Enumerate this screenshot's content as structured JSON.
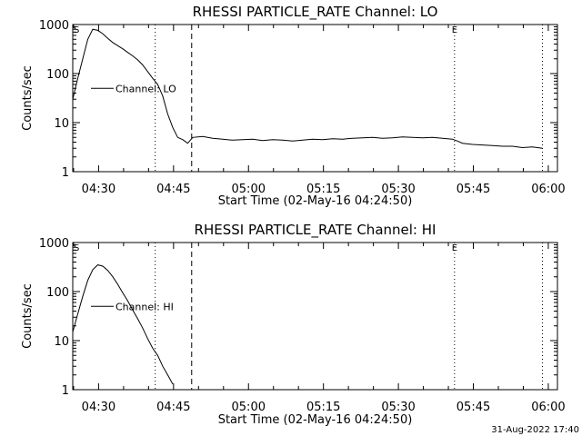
{
  "footer_timestamp": "31-Aug-2022 17:40",
  "chart_data": [
    {
      "type": "line",
      "title": "RHESSI PARTICLE_RATE Channel: LO",
      "xlabel": "Start Time (02-May-16 04:24:50)",
      "ylabel": "Counts/sec",
      "y_scale": "log",
      "ylim": [
        1,
        1000
      ],
      "xlim_minutes": [
        0,
        97
      ],
      "x_tick_labels": [
        "04:30",
        "04:45",
        "05:00",
        "05:15",
        "05:30",
        "05:45",
        "06:00"
      ],
      "x_tick_minutes": [
        5.17,
        20.17,
        35.17,
        50.17,
        65.17,
        80.17,
        95.17
      ],
      "y_tick_labels": [
        "1",
        "10",
        "100",
        "1000"
      ],
      "y_tick_values": [
        1,
        10,
        100,
        1000
      ],
      "legend": "Channel: LO",
      "region_markers": [
        "S",
        "E"
      ],
      "vlines": [
        {
          "minute": 16.5,
          "style": "dotted"
        },
        {
          "minute": 23.8,
          "style": "dashed"
        },
        {
          "minute": 76.4,
          "style": "dotted"
        },
        {
          "minute": 94.0,
          "style": "dotted"
        }
      ],
      "series": [
        {
          "x": [
            0,
            1,
            2,
            3,
            4,
            5,
            6,
            7,
            8,
            9,
            10,
            11,
            12,
            13,
            14,
            15,
            16,
            17,
            18,
            19,
            20,
            21,
            22,
            23,
            24,
            26,
            28,
            30,
            32,
            34,
            36,
            38,
            40,
            42,
            44,
            46,
            48,
            50,
            52,
            54,
            56,
            58,
            60,
            62,
            64,
            66,
            68,
            70,
            72,
            74,
            76,
            77,
            78,
            80,
            82,
            84,
            86,
            88,
            90,
            92,
            94
          ],
          "y": [
            30,
            80,
            200,
            500,
            800,
            760,
            650,
            520,
            430,
            370,
            320,
            270,
            230,
            190,
            150,
            110,
            80,
            60,
            35,
            15,
            8,
            5,
            4.5,
            3.8,
            5,
            5.2,
            4.8,
            4.6,
            4.4,
            4.5,
            4.6,
            4.3,
            4.5,
            4.4,
            4.2,
            4.4,
            4.6,
            4.5,
            4.7,
            4.6,
            4.8,
            4.9,
            5.0,
            4.8,
            4.9,
            5.1,
            5.0,
            4.9,
            5.0,
            4.8,
            4.6,
            4.2,
            3.8,
            3.6,
            3.5,
            3.4,
            3.3,
            3.3,
            3.1,
            3.2,
            3.0
          ]
        }
      ]
    },
    {
      "type": "line",
      "title": "RHESSI PARTICLE_RATE Channel: HI",
      "xlabel": "Start Time (02-May-16 04:24:50)",
      "ylabel": "Counts/sec",
      "y_scale": "log",
      "ylim": [
        1,
        1000
      ],
      "xlim_minutes": [
        0,
        97
      ],
      "x_tick_labels": [
        "04:30",
        "04:45",
        "05:00",
        "05:15",
        "05:30",
        "05:45",
        "06:00"
      ],
      "x_tick_minutes": [
        5.17,
        20.17,
        35.17,
        50.17,
        65.17,
        80.17,
        95.17
      ],
      "y_tick_labels": [
        "1",
        "10",
        "100",
        "1000"
      ],
      "y_tick_values": [
        1,
        10,
        100,
        1000
      ],
      "legend": "Channel: HI",
      "region_markers": [
        "S",
        "E"
      ],
      "vlines": [
        {
          "minute": 16.5,
          "style": "dotted"
        },
        {
          "minute": 23.8,
          "style": "dashed"
        },
        {
          "minute": 76.4,
          "style": "dotted"
        },
        {
          "minute": 94.0,
          "style": "dotted"
        }
      ],
      "series": [
        {
          "x": [
            0,
            1,
            2,
            3,
            4,
            5,
            6,
            7,
            8,
            9,
            10,
            11,
            12,
            13,
            14,
            15,
            16,
            17,
            18,
            19,
            20
          ],
          "y": [
            15,
            35,
            80,
            170,
            280,
            350,
            330,
            270,
            200,
            140,
            95,
            65,
            42,
            28,
            18,
            11,
            7,
            5,
            3,
            2,
            1.3
          ]
        }
      ]
    }
  ]
}
